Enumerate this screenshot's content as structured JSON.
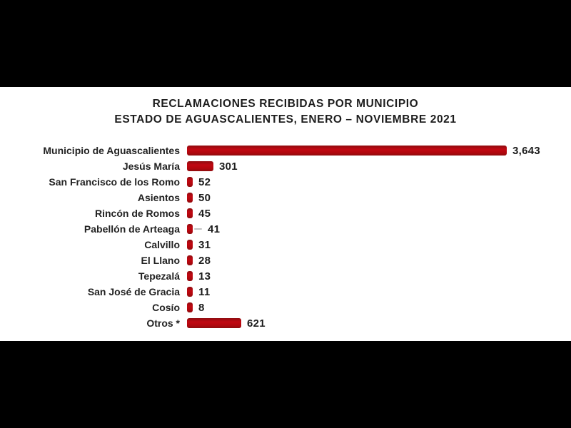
{
  "title": {
    "line1": "RECLAMACIONES RECIBIDAS POR MUNICIPIO",
    "line2": "ESTADO DE AGUASCALIENTES, ENERO – NOVIEMBRE 2021"
  },
  "chart_data": {
    "type": "bar",
    "orientation": "horizontal",
    "title": "RECLAMACIONES RECIBIDAS POR MUNICIPIO — ESTADO DE AGUASCALIENTES, ENERO – NOVIEMBRE 2021",
    "categories": [
      "Municipio de Aguascalientes",
      "Jesús María",
      "San Francisco de los Romo",
      "Asientos",
      "Rincón de Romos",
      "Pabellón de Arteaga",
      "Calvillo",
      "El Llano",
      "Tepezalá",
      "San José de Gracia",
      "Cosío",
      "Otros *"
    ],
    "values": [
      3643,
      301,
      52,
      50,
      45,
      41,
      31,
      28,
      13,
      11,
      8,
      621
    ],
    "value_labels": [
      "3,643",
      "301",
      "52",
      "50",
      "45",
      "41",
      "31",
      "28",
      "13",
      "11",
      "8",
      "621"
    ],
    "xlabel": "",
    "ylabel": "",
    "xlim": [
      0,
      3800
    ],
    "grid": false,
    "legend": false,
    "bar_color": "#b2070e",
    "value_label_position": "end-of-bar",
    "stray_dash_artifact_row_index": 5
  },
  "colors": {
    "letterbox_black": "#000000",
    "canvas_white": "#ffffff",
    "bar_red": "#b2070e",
    "text_dark": "#1d1d1d",
    "artifact_gray": "#c2c2c2"
  }
}
